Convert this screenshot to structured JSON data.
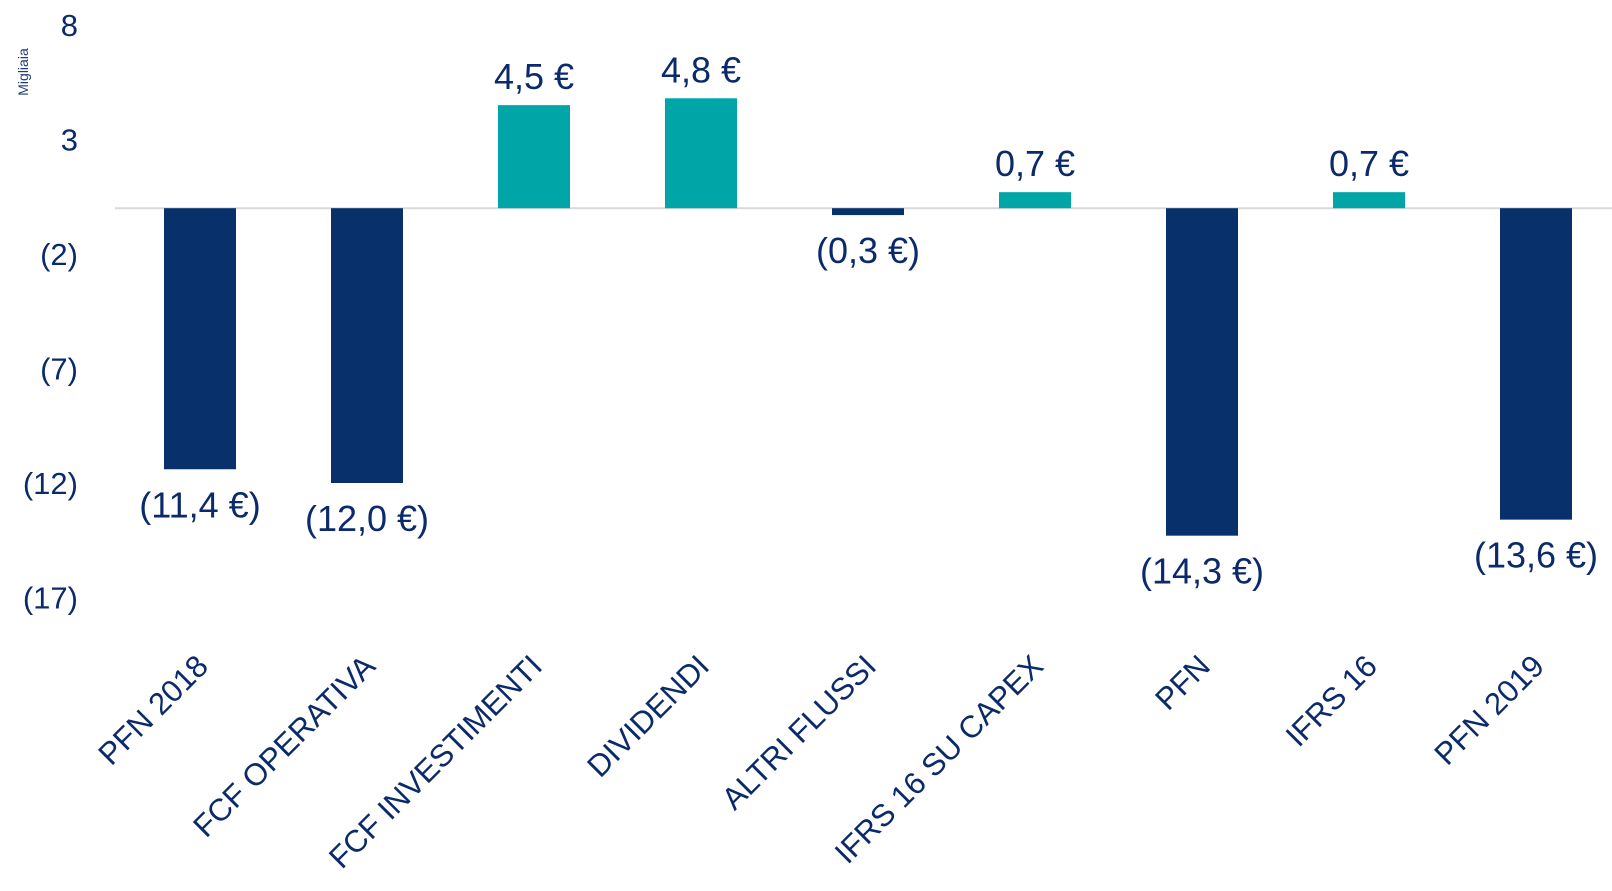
{
  "chart_data": {
    "type": "bar",
    "y_unit_label": "Migliaia",
    "categories": [
      "PFN 2018",
      "FCF OPERATIVA",
      "FCF INVESTIMENTI",
      "DIVIDENDI",
      "ALTRI FLUSSI",
      "IFRS 16 SU CAPEX",
      "PFN",
      "IFRS 16",
      "PFN 2019"
    ],
    "values": [
      -11.4,
      -12.0,
      4.5,
      4.8,
      -0.3,
      0.7,
      -14.3,
      0.7,
      -13.6
    ],
    "data_labels": [
      "(11,4 €)",
      "(12,0 €)",
      "4,5 €",
      "4,8 €",
      "(0,3 €)",
      "0,7 €",
      "(14,3 €)",
      "0,7 €",
      "(13,6 €)"
    ],
    "ylim": [
      -17,
      8
    ],
    "y_ticks": [
      8,
      3,
      -2,
      -7,
      -12,
      -17
    ],
    "y_tick_labels": [
      "8",
      "3",
      "(2)",
      "(7)",
      "(12)",
      "(17)"
    ],
    "grid": false,
    "legend": "none",
    "colors": {
      "positive": "#00a5a8",
      "negative": "#08306b",
      "text": "#0b2a6b",
      "baseline": "#d9d9d9"
    }
  }
}
